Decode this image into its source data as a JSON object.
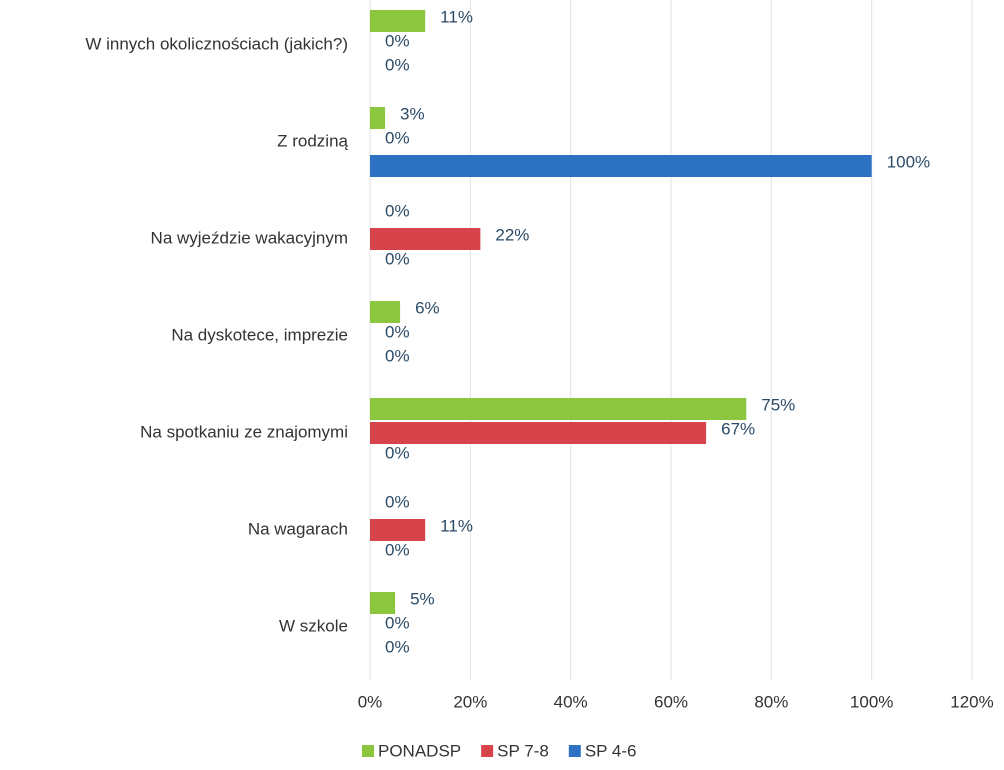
{
  "chart_data": {
    "type": "bar",
    "orientation": "horizontal",
    "categories": [
      "W innych okolicznościach (jakich?)",
      "Z rodziną",
      "Na wyjeździe wakacyjnym",
      "Na dyskotece, imprezie",
      "Na spotkaniu ze znajomymi",
      "Na wagarach",
      "W szkole"
    ],
    "series": [
      {
        "name": "PONADSP",
        "color": "#8cc63e",
        "values": [
          11,
          3,
          0,
          6,
          75,
          0,
          5
        ],
        "value_labels": [
          "11%",
          "3%",
          "0%",
          "6%",
          "75%",
          "0%",
          "5%"
        ]
      },
      {
        "name": "SP 7-8",
        "color": "#d6434b",
        "values": [
          0,
          0,
          22,
          0,
          67,
          11,
          0
        ],
        "value_labels": [
          "0%",
          "0%",
          "22%",
          "0%",
          "67%",
          "11%",
          "0%"
        ]
      },
      {
        "name": "SP 4-6",
        "color": "#2d72c2",
        "values": [
          0,
          100,
          0,
          0,
          0,
          0,
          0
        ],
        "value_labels": [
          "0%",
          "100%",
          "0%",
          "0%",
          "0%",
          "0%",
          "0%"
        ]
      }
    ],
    "xlim": [
      0,
      120
    ],
    "xticks": [
      {
        "value": 0,
        "label": "0%"
      },
      {
        "value": 20,
        "label": "20%"
      },
      {
        "value": 40,
        "label": "40%"
      },
      {
        "value": 60,
        "label": "60%"
      },
      {
        "value": 80,
        "label": "80%"
      },
      {
        "value": 100,
        "label": "100%"
      },
      {
        "value": 120,
        "label": "120%"
      }
    ],
    "grid": true,
    "legend": "bottom"
  }
}
